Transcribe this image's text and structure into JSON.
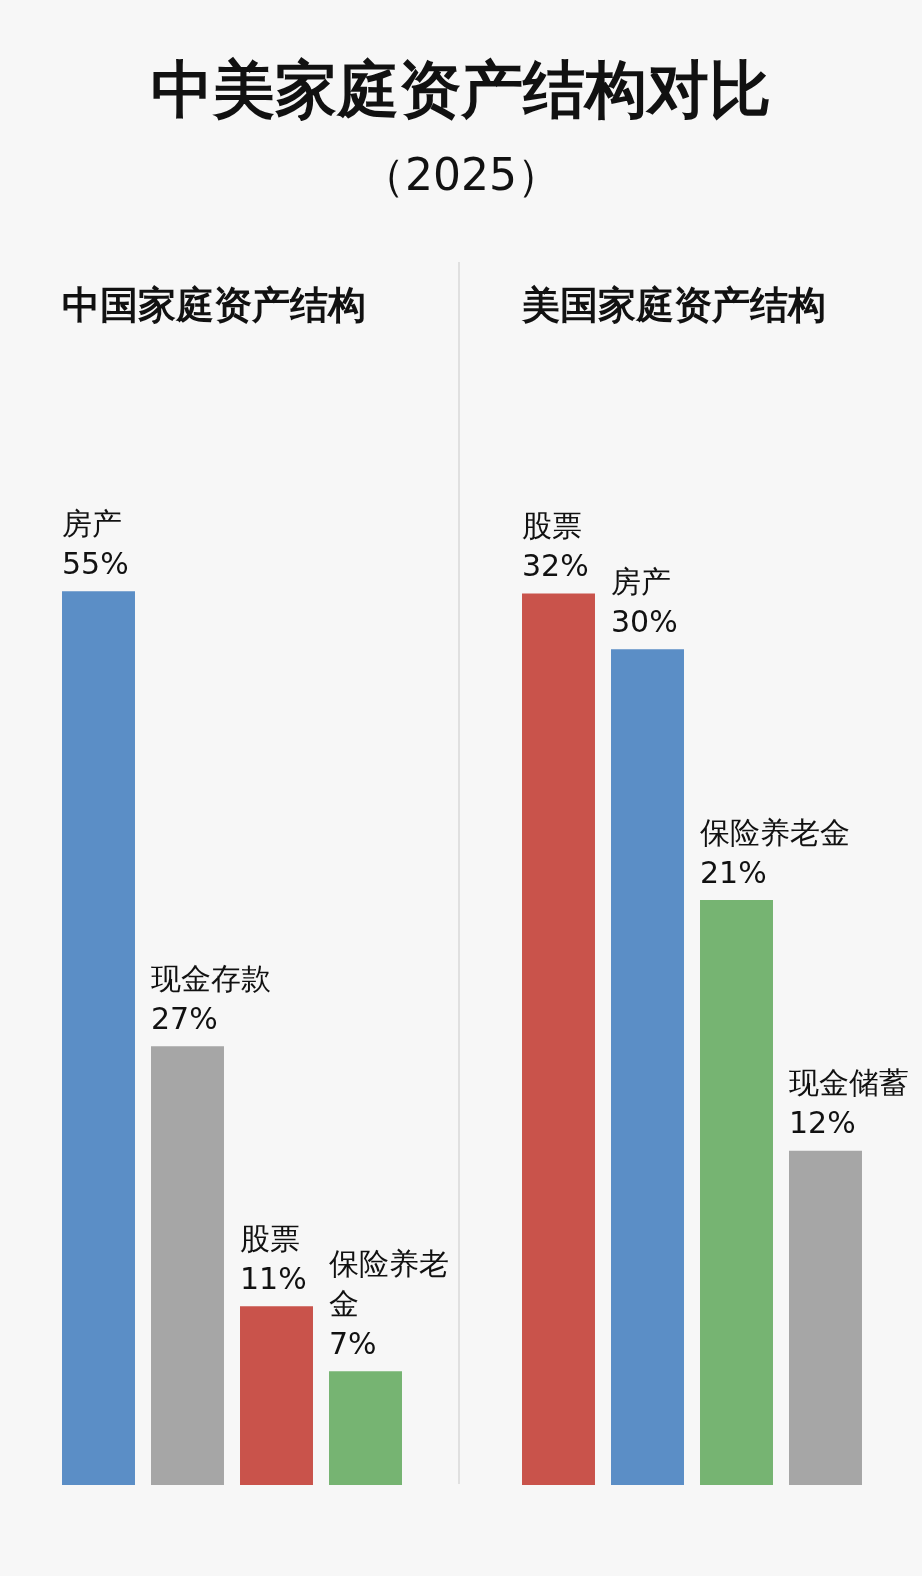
{
  "chart_data": [
    {
      "type": "other",
      "title": "中美家庭资产结构对比",
      "subtitle": "（2025）"
    },
    {
      "type": "bar",
      "title": "中国家庭资产结构",
      "categories": [
        null,
        null,
        null,
        null
      ],
      "annotations": [
        "房产",
        "现金存款",
        "股票",
        "保险养老金"
      ],
      "values": [
        55,
        27,
        11,
        7
      ],
      "colors": [
        "#5b8ec6",
        "#a6a6a6",
        "#c9534b",
        "#76b472"
      ],
      "value_labels": [
        "55%",
        "27%",
        "11%",
        "7%"
      ],
      "tick_labels": false
    },
    {
      "type": "bar",
      "title": "美国家庭资产结构",
      "categories": [
        null,
        null,
        null,
        null
      ],
      "annotations": [
        "股票",
        "房产",
        "保险养老金",
        "现金储蓄"
      ],
      "values": [
        32,
        30,
        21,
        12
      ],
      "colors": [
        "#c9534b",
        "#5b8ec6",
        "#76b472",
        "#a6a6a6"
      ],
      "value_labels": [
        "32%",
        "30%",
        "21%",
        "12%"
      ],
      "tick_labels": false
    }
  ]
}
